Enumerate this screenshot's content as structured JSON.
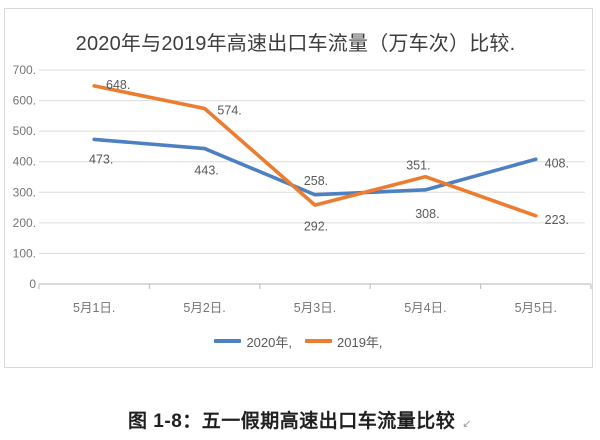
{
  "page": {
    "caption": "图 1-8：五一假期高速出口车流量比较",
    "caption_mark": "↙"
  },
  "chart_data": {
    "type": "line",
    "title": "2020年与2019年高速出口车流量（万车次）比较.",
    "categories": [
      "5月1日.",
      "5月2日.",
      "5月3日.",
      "5月4日.",
      "5月5日."
    ],
    "series": [
      {
        "name": "2020",
        "legend_label": "2020年,",
        "color": "#4C80C2",
        "values": [
          473,
          443,
          292,
          308,
          408
        ],
        "data_labels": [
          "473.",
          "443.",
          "292.",
          "308.",
          "408."
        ],
        "label_offsets": [
          [
            7,
            20
          ],
          [
            2,
            22
          ],
          [
            1,
            32
          ],
          [
            2,
            24
          ],
          [
            21,
            4
          ]
        ]
      },
      {
        "name": "2019",
        "legend_label": "2019年,",
        "color": "#EC7C30",
        "values": [
          648,
          574,
          258,
          351,
          223
        ],
        "data_labels": [
          "648.",
          "574.",
          "258.",
          "351.",
          "223."
        ],
        "label_offsets": [
          [
            24,
            -1
          ],
          [
            25,
            2
          ],
          [
            1,
            -24
          ],
          [
            -7,
            -11
          ],
          [
            21,
            4
          ]
        ]
      }
    ],
    "yticks": {
      "values": [
        700,
        600,
        500,
        400,
        300,
        200,
        100,
        0
      ],
      "labels": [
        "700.",
        "600.",
        "500.",
        "400.",
        "300.",
        "200.",
        "100.",
        "0"
      ]
    },
    "ylim": [
      0,
      700
    ],
    "xlabel": "",
    "ylabel": "",
    "grid": true,
    "legend_position": "bottom",
    "colors": {
      "grid": "#dcdcdc",
      "axis": "#c4c4c4",
      "tick_label": "#757575",
      "data_label": "#595959",
      "title": "#3d3d3d"
    }
  }
}
